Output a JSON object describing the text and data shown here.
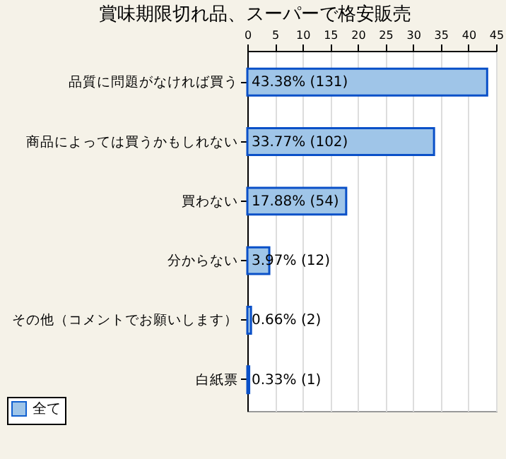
{
  "chart_data": {
    "type": "bar",
    "orientation": "horizontal",
    "title": "賞味期限切れ品、スーパーで格安販売",
    "categories": [
      "品質に問題がなければ買う",
      "商品によっては買うかもしれない",
      "買わない",
      "分からない",
      "その他（コメントでお願いします）",
      "白紙票"
    ],
    "series": [
      {
        "name": "全て",
        "color": "#9fc5e8",
        "values": [
          43.38,
          33.77,
          17.88,
          3.97,
          0.66,
          0.33
        ],
        "value_labels": [
          "43.38% (131)",
          "33.77% (102)",
          "17.88% (54)",
          "3.97% (12)",
          "0.66% (2)",
          "0.33% (1)"
        ]
      }
    ],
    "xlim": [
      0,
      45
    ],
    "xticks": [
      0,
      5,
      10,
      15,
      20,
      25,
      30,
      35,
      40,
      45
    ],
    "grid": "x",
    "legend": "bottom left"
  }
}
